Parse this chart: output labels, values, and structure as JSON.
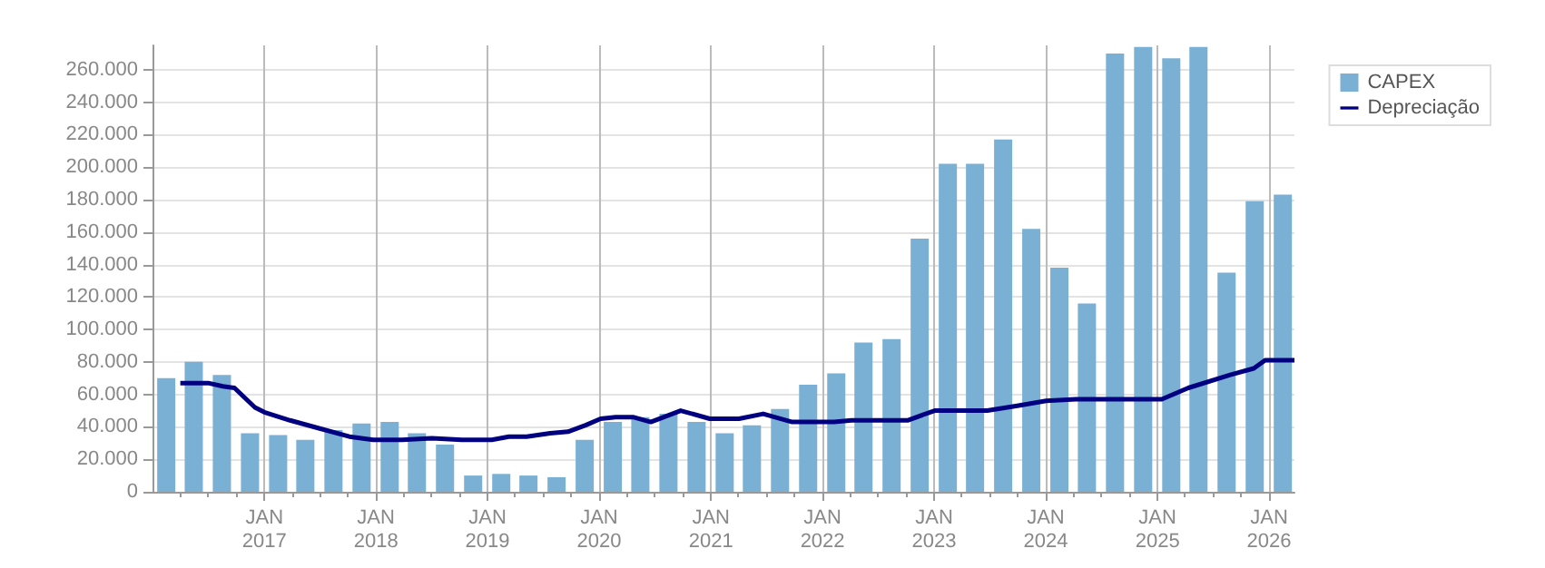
{
  "chart_data": {
    "type": "bar",
    "x": [
      "2016-02-15",
      "2016-05-15",
      "2016-08-15",
      "2016-11-15",
      "2017-02-15",
      "2017-05-15",
      "2017-08-15",
      "2017-11-15",
      "2018-02-15",
      "2018-05-15",
      "2018-08-15",
      "2018-11-15",
      "2019-02-15",
      "2019-05-15",
      "2019-08-15",
      "2019-11-15",
      "2020-02-15",
      "2020-05-15",
      "2020-08-15",
      "2020-11-15",
      "2021-02-15",
      "2021-05-15",
      "2021-08-15",
      "2021-11-15",
      "2022-02-15",
      "2022-05-15",
      "2022-08-15",
      "2022-11-15",
      "2023-02-15",
      "2023-05-15",
      "2023-08-15",
      "2023-11-15",
      "2024-02-15",
      "2024-05-15",
      "2024-08-15",
      "2024-11-15",
      "2025-02-15",
      "2025-05-15",
      "2025-08-15",
      "2025-11-15",
      "2026-02-15"
    ],
    "series": [
      {
        "name": "CAPEX",
        "color": "#7ab0d4",
        "values": [
          70000,
          80000,
          72000,
          36000,
          35000,
          32000,
          38000,
          42000,
          43000,
          36000,
          29000,
          10000,
          11000,
          10000,
          9000,
          32000,
          43000,
          46000,
          48000,
          43000,
          36000,
          41000,
          51000,
          66000,
          73000,
          92000,
          94000,
          156000,
          202000,
          202000,
          217000,
          162000,
          138000,
          116000,
          270000,
          274000,
          267000,
          274000,
          135000,
          179000,
          183000
        ]
      },
      {
        "name": "Depreciação",
        "type": "line",
        "color": "#000080",
        "x": [
          "2016-04-01",
          "2016-07-01",
          "2016-08-18",
          "2016-09-25",
          "2016-12-01",
          "2017-01-01",
          "2017-03-26",
          "2017-07-01",
          "2017-10-06",
          "2017-12-23",
          "2018-03-28",
          "2018-07-03",
          "2018-10-09",
          "2019-01-15",
          "2019-03-12",
          "2019-05-09",
          "2019-07-25",
          "2019-09-21",
          "2019-11-18",
          "2020-01-06",
          "2020-02-24",
          "2020-04-21",
          "2020-06-18",
          "2020-09-24",
          "2020-12-28",
          "2021-04-03",
          "2021-06-21",
          "2021-09-24",
          "2022-02-08",
          "2022-04-06",
          "2022-10-06",
          "2023-01-03",
          "2023-06-24",
          "2023-09-30",
          "2024-01-03",
          "2024-04-09",
          "2025-01-15",
          "2025-04-12",
          "2025-08-27",
          "2025-11-12",
          "2025-12-19",
          "2026-03-25"
        ],
        "values": [
          67000,
          67000,
          65000,
          64000,
          52000,
          49000,
          44000,
          39000,
          34000,
          32000,
          32000,
          33000,
          32000,
          32000,
          34000,
          34000,
          36000,
          37000,
          41000,
          45000,
          46000,
          46000,
          43000,
          50000,
          45000,
          45000,
          48000,
          43000,
          43000,
          44000,
          44000,
          50000,
          50000,
          53000,
          56000,
          57000,
          57000,
          64000,
          72000,
          76000,
          81000,
          81000
        ]
      }
    ],
    "xlim": [
      "2016-01-01",
      "2026-03-25"
    ],
    "xticks": [
      {
        "value": "2016-04-01",
        "label": null
      },
      {
        "value": "2016-07-01",
        "label": null
      },
      {
        "value": "2016-10-01",
        "label": null
      },
      {
        "value": "2017-01-01",
        "label": "JAN\n2017"
      },
      {
        "value": "2017-04-01",
        "label": null
      },
      {
        "value": "2017-07-01",
        "label": null
      },
      {
        "value": "2017-10-01",
        "label": null
      },
      {
        "value": "2018-01-01",
        "label": "JAN\n2018"
      },
      {
        "value": "2018-04-01",
        "label": null
      },
      {
        "value": "2018-07-01",
        "label": null
      },
      {
        "value": "2018-10-01",
        "label": null
      },
      {
        "value": "2019-01-01",
        "label": "JAN\n2019"
      },
      {
        "value": "2019-04-01",
        "label": null
      },
      {
        "value": "2019-07-01",
        "label": null
      },
      {
        "value": "2019-10-01",
        "label": null
      },
      {
        "value": "2020-01-01",
        "label": "JAN\n2020"
      },
      {
        "value": "2020-04-01",
        "label": null
      },
      {
        "value": "2020-07-01",
        "label": null
      },
      {
        "value": "2020-10-01",
        "label": null
      },
      {
        "value": "2021-01-01",
        "label": "JAN\n2021"
      },
      {
        "value": "2021-04-01",
        "label": null
      },
      {
        "value": "2021-07-01",
        "label": null
      },
      {
        "value": "2021-10-01",
        "label": null
      },
      {
        "value": "2022-01-01",
        "label": "JAN\n2022"
      },
      {
        "value": "2022-04-01",
        "label": null
      },
      {
        "value": "2022-07-01",
        "label": null
      },
      {
        "value": "2022-10-01",
        "label": null
      },
      {
        "value": "2023-01-01",
        "label": "JAN\n2023"
      },
      {
        "value": "2023-04-01",
        "label": null
      },
      {
        "value": "2023-07-01",
        "label": null
      },
      {
        "value": "2023-10-01",
        "label": null
      },
      {
        "value": "2024-01-01",
        "label": "JAN\n2024"
      },
      {
        "value": "2024-04-01",
        "label": null
      },
      {
        "value": "2024-07-01",
        "label": null
      },
      {
        "value": "2024-10-01",
        "label": null
      },
      {
        "value": "2025-01-01",
        "label": "JAN\n2025"
      },
      {
        "value": "2025-04-01",
        "label": null
      },
      {
        "value": "2025-07-01",
        "label": null
      },
      {
        "value": "2025-10-01",
        "label": null
      },
      {
        "value": "2026-01-01",
        "label": "JAN\n2026"
      }
    ],
    "ylim": [
      0,
      275000
    ],
    "yticks": [
      {
        "value": 0,
        "label": "0"
      },
      {
        "value": 20000,
        "label": "20.000"
      },
      {
        "value": 40000,
        "label": "40.000"
      },
      {
        "value": 60000,
        "label": "60.000"
      },
      {
        "value": 80000,
        "label": "80.000"
      },
      {
        "value": 100000,
        "label": "100.000"
      },
      {
        "value": 120000,
        "label": "120.000"
      },
      {
        "value": 140000,
        "label": "140.000"
      },
      {
        "value": 160000,
        "label": "160.000"
      },
      {
        "value": 180000,
        "label": "180.000"
      },
      {
        "value": 200000,
        "label": "200.000"
      },
      {
        "value": 220000,
        "label": "220.000"
      },
      {
        "value": 240000,
        "label": "240.000"
      },
      {
        "value": 260000,
        "label": "260.000"
      }
    ],
    "grid": true,
    "legend": "top right",
    "marker": "none",
    "line_style": "solid"
  }
}
